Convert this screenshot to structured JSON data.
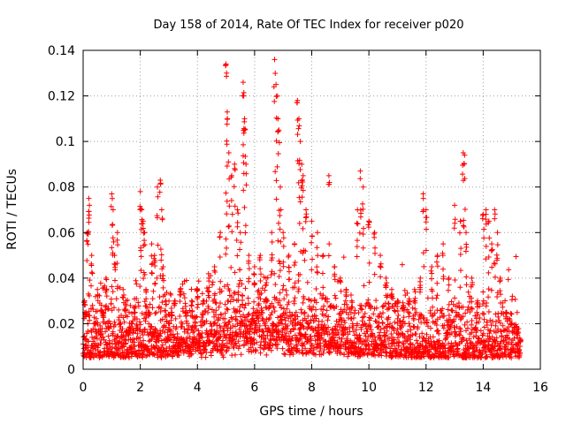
{
  "chart_data": {
    "type": "scatter",
    "title": "Day 158 of 2014, Rate Of TEC Index for receiver p020",
    "xlabel": "GPS time / hours",
    "ylabel": "ROTI / TECUs",
    "xlim": [
      0,
      16
    ],
    "ylim": [
      0,
      0.14
    ],
    "xticks": [
      0,
      2,
      4,
      6,
      8,
      10,
      12,
      14,
      16
    ],
    "xtick_labels": [
      "0",
      "2",
      "4",
      "6",
      "8",
      "10",
      "12",
      "14",
      "16"
    ],
    "yticks": [
      0,
      0.02,
      0.04,
      0.06,
      0.08,
      0.1,
      0.12,
      0.14
    ],
    "ytick_labels": [
      "0",
      "0.02",
      "0.04",
      "0.06",
      "0.08",
      "0.1",
      "0.12",
      "0.14"
    ],
    "grid": true,
    "marker": "+",
    "color": "#ff0000",
    "data_range_hours": [
      0,
      15.3
    ],
    "baseline_roti": [
      0.005,
      0.025
    ],
    "series": [
      {
        "name": "ROTI",
        "x": [
          0.05,
          0.1,
          0.15,
          0.2,
          0.22,
          0.3,
          0.4,
          0.5,
          0.6,
          0.7,
          0.8,
          0.9,
          1.0,
          1.05,
          1.1,
          1.2,
          1.3,
          1.4,
          1.5,
          1.6,
          1.7,
          1.8,
          1.9,
          2.0,
          2.05,
          2.1,
          2.15,
          2.2,
          2.3,
          2.4,
          2.5,
          2.6,
          2.7,
          2.75,
          2.8,
          2.9,
          3.0,
          3.1,
          3.2,
          3.4,
          3.6,
          3.8,
          4.0,
          4.2,
          4.4,
          4.6,
          4.8,
          5.0,
          5.02,
          5.05,
          5.1,
          5.2,
          5.3,
          5.4,
          5.5,
          5.6,
          5.62,
          5.65,
          5.7,
          5.8,
          6.0,
          6.2,
          6.4,
          6.6,
          6.7,
          6.75,
          6.8,
          6.85,
          6.9,
          7.0,
          7.2,
          7.4,
          7.5,
          7.55,
          7.6,
          7.65,
          7.7,
          7.8,
          8.0,
          8.2,
          8.4,
          8.6,
          8.8,
          9.0,
          9.2,
          9.4,
          9.6,
          9.7,
          9.8,
          10.0,
          10.2,
          10.4,
          10.6,
          10.8,
          11.0,
          11.2,
          11.4,
          11.6,
          11.8,
          11.9,
          12.0,
          12.2,
          12.4,
          12.6,
          12.8,
          13.0,
          13.2,
          13.3,
          13.35,
          13.4,
          13.6,
          13.8,
          14.0,
          14.1,
          14.2,
          14.3,
          14.4,
          14.5,
          14.6,
          14.8,
          15.0,
          15.2,
          15.3
        ],
        "y": [
          0.03,
          0.025,
          0.06,
          0.075,
          0.072,
          0.05,
          0.02,
          0.035,
          0.015,
          0.025,
          0.04,
          0.018,
          0.077,
          0.07,
          0.05,
          0.06,
          0.02,
          0.035,
          0.03,
          0.015,
          0.02,
          0.025,
          0.018,
          0.078,
          0.07,
          0.065,
          0.06,
          0.035,
          0.025,
          0.055,
          0.05,
          0.08,
          0.083,
          0.07,
          0.045,
          0.03,
          0.02,
          0.025,
          0.03,
          0.035,
          0.025,
          0.03,
          0.035,
          0.03,
          0.04,
          0.045,
          0.06,
          0.134,
          0.13,
          0.11,
          0.095,
          0.085,
          0.09,
          0.07,
          0.06,
          0.126,
          0.12,
          0.11,
          0.09,
          0.05,
          0.045,
          0.05,
          0.04,
          0.06,
          0.136,
          0.125,
          0.12,
          0.105,
          0.08,
          0.06,
          0.05,
          0.055,
          0.118,
          0.11,
          0.1,
          0.09,
          0.085,
          0.07,
          0.065,
          0.06,
          0.05,
          0.085,
          0.045,
          0.04,
          0.035,
          0.03,
          0.07,
          0.087,
          0.08,
          0.065,
          0.06,
          0.05,
          0.04,
          0.035,
          0.03,
          0.028,
          0.03,
          0.035,
          0.04,
          0.077,
          0.07,
          0.045,
          0.05,
          0.055,
          0.04,
          0.072,
          0.065,
          0.095,
          0.094,
          0.06,
          0.04,
          0.03,
          0.068,
          0.07,
          0.065,
          0.055,
          0.07,
          0.06,
          0.04,
          0.025,
          0.02,
          0.015,
          0.012
        ]
      }
    ]
  }
}
